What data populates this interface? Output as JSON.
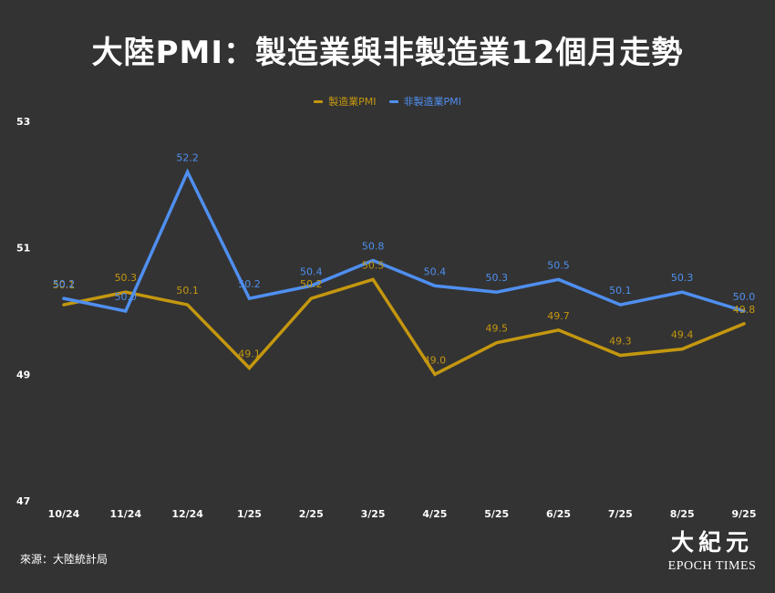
{
  "title": "大陸PMI：製造業與非製造業12個月走勢",
  "source": "來源：大陸統計局",
  "logo": {
    "cn": "大紀元",
    "en": "EPOCH TIMES"
  },
  "colors": {
    "manufacturing": "#c4970f",
    "non_manufacturing": "#4f8ff0"
  },
  "chart_data": {
    "type": "line",
    "title": "大陸PMI：製造業與非製造業12個月走勢",
    "xlabel": "",
    "ylabel": "",
    "categories": [
      "10/24",
      "11/24",
      "12/24",
      "1/25",
      "2/25",
      "3/25",
      "4/25",
      "5/25",
      "6/25",
      "7/25",
      "8/25",
      "9/25"
    ],
    "series": [
      {
        "name": "製造業PMI",
        "values": [
          50.1,
          50.3,
          50.1,
          49.1,
          50.2,
          50.5,
          49.0,
          49.5,
          49.7,
          49.3,
          49.4,
          49.8
        ],
        "labels": [
          "50.1",
          "50.3",
          "50.1",
          "49.1",
          "50.2",
          "50.5",
          "49.0",
          "49.5",
          "49.7",
          "49.3",
          "49.4",
          "49.8"
        ]
      },
      {
        "name": "非製造業PMI",
        "values": [
          50.2,
          50.0,
          52.2,
          50.2,
          50.4,
          50.8,
          50.4,
          50.3,
          50.5,
          50.1,
          50.3,
          50.0
        ],
        "labels": [
          "50.2",
          "50.0",
          "52.2",
          "50.2",
          "50.4",
          "50.8",
          "50.4",
          "50.3",
          "50.5",
          "50.1",
          "50.3",
          "50.0"
        ]
      }
    ],
    "yticks": [
      "53",
      "51",
      "49",
      "47"
    ],
    "ylim": [
      47,
      53
    ],
    "legend": "top-center",
    "grid": false
  }
}
